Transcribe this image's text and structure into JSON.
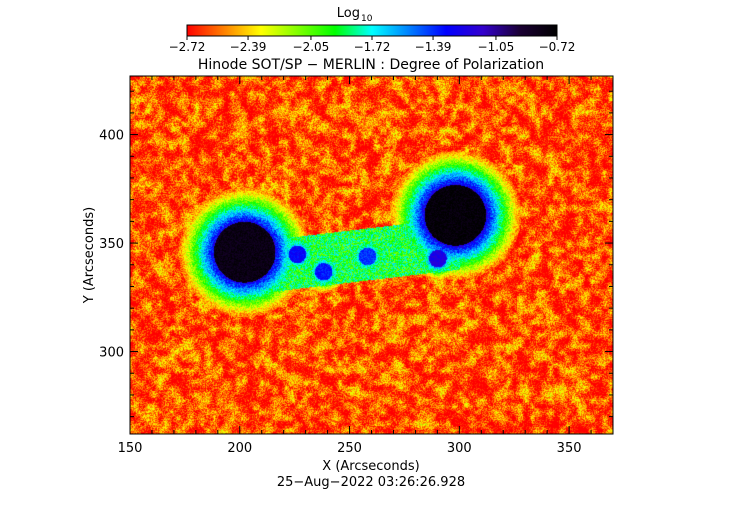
{
  "chart_data": {
    "type": "heatmap",
    "title": "Hinode SOT/SP − MERLIN : Degree of Polarization",
    "xlabel": "X (Arcseconds)",
    "ylabel": "Y (Arcseconds)",
    "timestamp": "25−Aug−2022 03:26:26.928",
    "xlim": [
      150,
      370
    ],
    "ylim": [
      262,
      427
    ],
    "xticks": [
      150,
      200,
      250,
      300,
      350
    ],
    "xtick_labels": [
      "150",
      "200",
      "250",
      "300",
      "350"
    ],
    "yticks": [
      300,
      350,
      400
    ],
    "ytick_labels": [
      "300",
      "350",
      "400"
    ],
    "colorbar": {
      "label": "Log",
      "label_subscript": "10",
      "range": [
        -2.72,
        -0.72
      ],
      "ticks": [
        -2.72,
        -2.39,
        -2.05,
        -1.72,
        -1.39,
        -1.05,
        -0.72
      ],
      "tick_labels": [
        "−2.72",
        "−2.39",
        "−2.05",
        "−1.72",
        "−1.39",
        "−1.05",
        "−0.72"
      ],
      "colormap": [
        "#ff0000",
        "#ff8000",
        "#ffff00",
        "#80ff00",
        "#00ff00",
        "#00ffff",
        "#0080ff",
        "#0000ff",
        "#3300cc",
        "#1a0033",
        "#000000"
      ]
    },
    "features": [
      {
        "kind": "sunspot",
        "x": 298,
        "y": 363,
        "peak": -0.75
      },
      {
        "kind": "sunspot",
        "x": 202,
        "y": 346,
        "peak": -0.8
      },
      {
        "kind": "pore",
        "x": 290,
        "y": 343,
        "peak": -1.2
      },
      {
        "kind": "pore",
        "x": 226,
        "y": 345,
        "peak": -1.3
      },
      {
        "kind": "pore",
        "x": 238,
        "y": 337,
        "peak": -1.35
      },
      {
        "kind": "pore",
        "x": 258,
        "y": 344,
        "peak": -1.4
      }
    ],
    "background_level": -2.6
  }
}
